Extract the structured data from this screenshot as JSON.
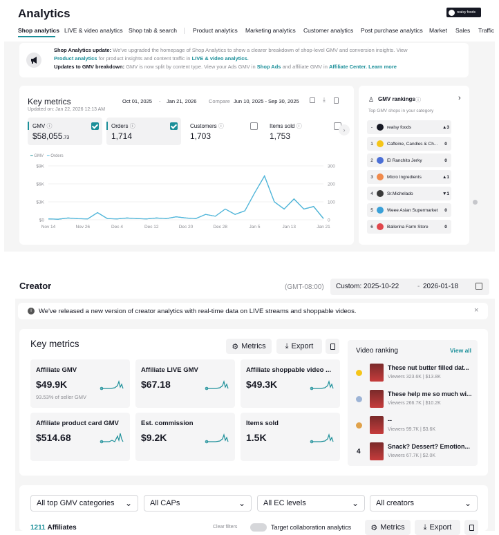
{
  "analytics": {
    "title": "Analytics",
    "shop_name": "realsy foods",
    "tabs": [
      "Shop analytics",
      "LIVE & video analytics",
      "Shop tab & search",
      "Product analytics",
      "Marketing analytics",
      "Customer analytics",
      "Post purchase analytics",
      "Market",
      "Sales",
      "Traffic"
    ],
    "banner": {
      "line1_bold": "Shop Analytics update:",
      "line1_text": "We've upgraded the homepage of Shop Analytics to show a clearer breakdown of shop-level GMV and conversion insights. View",
      "line2_link1": "Product analytics",
      "line2_text": "for product insights and content traffic in",
      "line2_link2": "LIVE & video analytics.",
      "line3_bold": "Updates to GMV breakdown:",
      "line3_text": "GMV is now split by content type. View your Ads GMV in",
      "line3_link1": "Shop Ads",
      "line3_text2": "and affiliate GMV in",
      "line3_link2": "Affiliate Center.",
      "line3_link3": "Learn more"
    },
    "key_metrics": {
      "title": "Key metrics",
      "updated": "Updated on: Jan 22, 2026 12:13 AM",
      "date_start": "Oct 01, 2025",
      "date_sep": "-",
      "date_end": "Jan 21, 2026",
      "compare_label": "Compare",
      "compare_range": "Jun 10, 2025 - Sep 30, 2025",
      "metrics": [
        {
          "label": "GMV",
          "value": "$58,055",
          "cents": ".73",
          "checked": true
        },
        {
          "label": "Orders",
          "value": "1,714",
          "checked": true
        },
        {
          "label": "Customers",
          "value": "1,703",
          "checked": false
        },
        {
          "label": "Items sold",
          "value": "1,753",
          "checked": false
        }
      ],
      "legend_gmv": "GMV",
      "legend_orders": "Orders"
    },
    "chart_data": {
      "type": "line",
      "x_ticks": [
        "Nov 14",
        "Nov 26",
        "Dec 4",
        "Dec 12",
        "Dec 20",
        "Dec 28",
        "Jan 5",
        "Jan 13",
        "Jan 21"
      ],
      "y_left_ticks": [
        "$9K",
        "$6K",
        "$3K",
        "$0"
      ],
      "y_right_ticks": [
        "300",
        "200",
        "100",
        "0"
      ],
      "ylim_left": [
        0,
        9000
      ],
      "ylim_right": [
        0,
        300
      ],
      "series": [
        {
          "name": "GMV",
          "values": [
            150,
            100,
            300,
            200,
            150,
            1200,
            200,
            150,
            300,
            200,
            150,
            300,
            200,
            500,
            300,
            200,
            900,
            600,
            1800,
            900,
            1500,
            4500,
            7300,
            3000,
            1800,
            3500,
            1800,
            2200,
            200
          ],
          "color": "#1b8f99"
        },
        {
          "name": "Orders",
          "values": [
            5,
            3,
            10,
            6,
            5,
            40,
            7,
            5,
            10,
            7,
            5,
            10,
            7,
            17,
            10,
            7,
            30,
            20,
            60,
            30,
            50,
            150,
            245,
            100,
            60,
            115,
            60,
            75,
            8
          ],
          "color": "#52b8e0"
        }
      ]
    },
    "gmv_rankings": {
      "title": "GMV rankings",
      "subtitle": "Top GMV shops in your category",
      "rows": [
        {
          "rank": "-",
          "name": "realsy foods",
          "change": "▲3"
        },
        {
          "rank": "1",
          "name": "Caffeine, Candles & Ch...",
          "change": "0"
        },
        {
          "rank": "2",
          "name": "El Ranchito Jerky",
          "change": "0"
        },
        {
          "rank": "3",
          "name": "Micro Ingredients",
          "change": "▲1"
        },
        {
          "rank": "4",
          "name": "Sr.Michelado",
          "change": "▼1"
        },
        {
          "rank": "5",
          "name": "Weee Asian Supermarket",
          "change": "0"
        },
        {
          "rank": "6",
          "name": "Ballerina Farm Store",
          "change": "0"
        }
      ]
    }
  },
  "creator": {
    "title": "Creator",
    "timezone": "(GMT-08:00)",
    "date_custom": "Custom: 2025-10-22",
    "date_end": "2026-01-18",
    "notice": "We've released a new version of creator analytics with real-time data on LIVE streams and shoppable videos.",
    "key_metrics_title": "Key metrics",
    "metrics_btn": "Metrics",
    "export_btn": "Export",
    "tiles": [
      {
        "label": "Affiliate GMV",
        "value": "$49.9K",
        "sub": "93.53% of seller GMV"
      },
      {
        "label": "Affiliate LIVE GMV",
        "value": "$67.18",
        "sub": ""
      },
      {
        "label": "Affiliate shoppable video ...",
        "value": "$49.3K",
        "sub": ""
      },
      {
        "label": "Affiliate product card GMV",
        "value": "$514.68",
        "sub": ""
      },
      {
        "label": "Est. commission",
        "value": "$9.2K",
        "sub": ""
      },
      {
        "label": "Items sold",
        "value": "1.5K",
        "sub": ""
      }
    ],
    "video_ranking": {
      "title": "Video ranking",
      "view_all": "View all",
      "rows": [
        {
          "rank": "",
          "title": "These nut butter filled dat...",
          "viewers": "Viewers 323.6K",
          "gmv": "$13.8K"
        },
        {
          "rank": "",
          "title": "These help me so much wi...",
          "viewers": "Viewers 266.7K",
          "gmv": "$10.2K"
        },
        {
          "rank": "",
          "title": "--",
          "viewers": "Viewers 99.7K",
          "gmv": "$3.6K"
        },
        {
          "rank": "4",
          "title": "Snack? Dessert? Emotion...",
          "viewers": "Viewers 67.7K",
          "gmv": "$2.0K"
        }
      ]
    },
    "filters": [
      "All top GMV categories",
      "All CAPs",
      "All EC levels",
      "All creators"
    ],
    "affiliates_count": "1211",
    "affiliates_label": "Affiliates",
    "clear_filters": "Clear filters",
    "target_collab": "Target collaboration analytics",
    "metrics_btn2": "Metrics",
    "export_btn2": "Export"
  }
}
